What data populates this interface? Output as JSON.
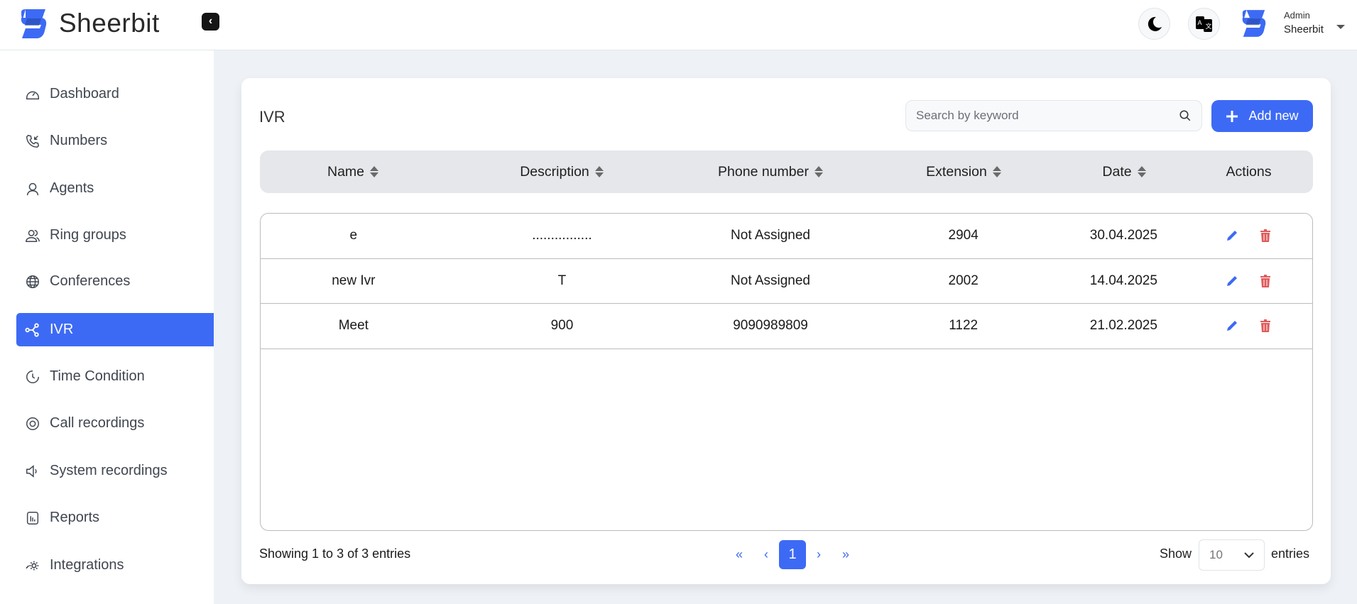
{
  "header": {
    "brand": "Sheerbit",
    "user_role": "Admin",
    "user_name": "Sheerbit",
    "icons": [
      "logo-icon",
      "collapse-icon",
      "moon-icon",
      "translate-icon",
      "avatar",
      "caret-down-icon"
    ]
  },
  "colors": {
    "accent": "#3d6af5",
    "delete": "#e05a5a",
    "header_row": "#e5e7eb",
    "background": "#eef1f5"
  },
  "sidebar": {
    "items": [
      {
        "label": "Dashboard",
        "icon": "gauge-icon"
      },
      {
        "label": "Numbers",
        "icon": "phone-incoming-icon"
      },
      {
        "label": "Agents",
        "icon": "headset-user-icon"
      },
      {
        "label": "Ring groups",
        "icon": "users-icon"
      },
      {
        "label": "Conferences",
        "icon": "globe-icon"
      },
      {
        "label": "IVR",
        "icon": "share-nodes-icon",
        "active": true
      },
      {
        "label": "Time Condition",
        "icon": "clock-icon"
      },
      {
        "label": "Call recordings",
        "icon": "record-icon"
      },
      {
        "label": "System recordings",
        "icon": "speaker-icon"
      },
      {
        "label": "Reports",
        "icon": "bar-chart-icon"
      },
      {
        "label": "Integrations",
        "icon": "gear-icon"
      }
    ]
  },
  "main": {
    "title": "IVR",
    "search": {
      "placeholder": "Search by keyword",
      "value": ""
    },
    "add_label": "Add new",
    "table": {
      "columns": [
        "Name",
        "Description",
        "Phone number",
        "Extension",
        "Date",
        "Actions"
      ],
      "rows": [
        {
          "name": "e",
          "description": "................",
          "phone": "Not Assigned",
          "extension": "2904",
          "date": "30.04.2025"
        },
        {
          "name": "new Ivr",
          "description": "T",
          "phone": "Not Assigned",
          "extension": "2002",
          "date": "14.04.2025"
        },
        {
          "name": "Meet",
          "description": "900",
          "phone": "9090989809",
          "extension": "1122",
          "date": "21.02.2025"
        }
      ]
    },
    "footer": {
      "info": "Showing 1 to 3 of 3 entries",
      "first": "«",
      "prev": "‹",
      "page": "1",
      "next": "›",
      "last": "»",
      "show_label": "Show",
      "page_size": "10",
      "entries_label": "entries"
    }
  }
}
